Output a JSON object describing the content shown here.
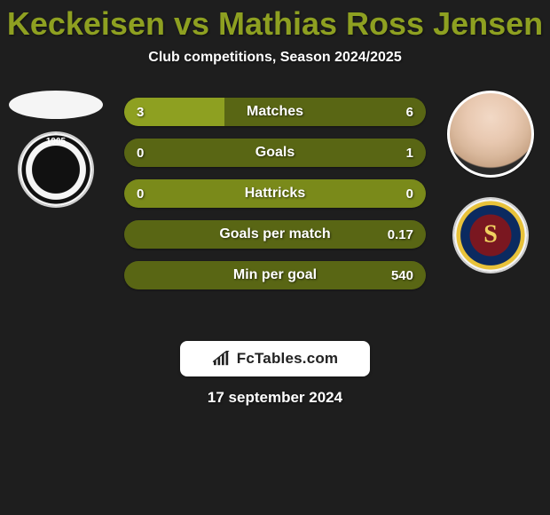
{
  "title_color": "#8ea021",
  "title": "Keckeisen vs Mathias Ross Jensen",
  "subtitle": "Club competitions, Season 2024/2025",
  "colors": {
    "left": "#8ea021",
    "right": "#596614",
    "neutral": "#7a8a1a",
    "bg": "#1e1e1e",
    "text": "#ffffff"
  },
  "bars": [
    {
      "label": "Matches",
      "left": "3",
      "right": "6",
      "left_pct": 33.3
    },
    {
      "label": "Goals",
      "left": "0",
      "right": "1",
      "left_pct": 0.0
    },
    {
      "label": "Hattricks",
      "left": "0",
      "right": "0",
      "left_pct": 50.0,
      "neutral": true
    },
    {
      "label": "Goals per match",
      "left": "",
      "right": "0.17",
      "left_pct": 0.0
    },
    {
      "label": "Min per goal",
      "left": "",
      "right": "540",
      "left_pct": 0.0
    }
  ],
  "branding": "FcTables.com",
  "date": "17 september 2024"
}
